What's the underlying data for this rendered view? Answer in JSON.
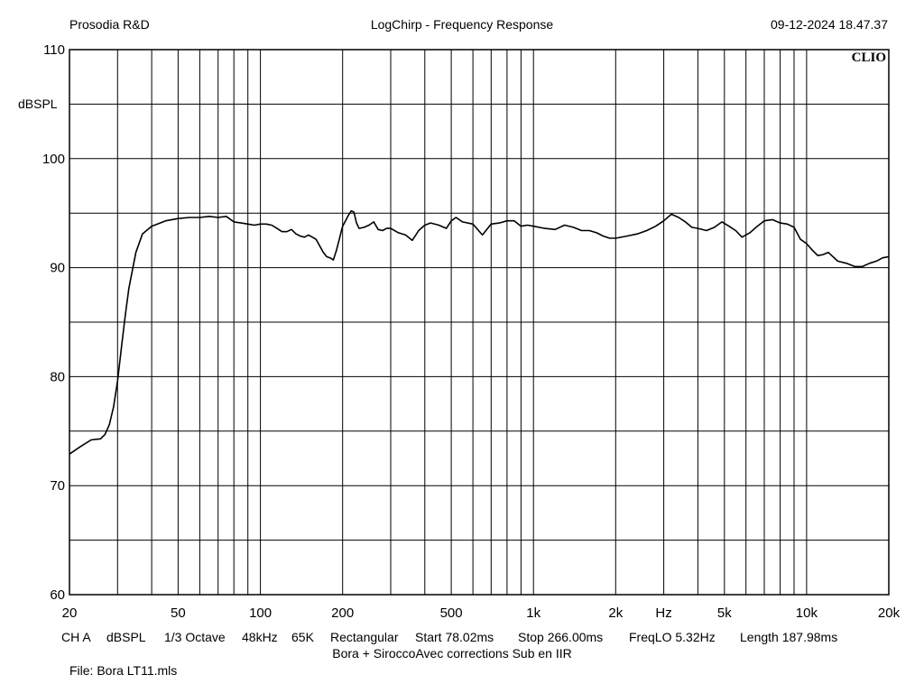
{
  "header": {
    "left": "Prosodia R&D",
    "center": "LogChirp - Frequency Response",
    "right": "09-12-2024 18.47.37"
  },
  "brand": "CLIO",
  "footer": {
    "settings": [
      "CH A",
      "dBSPL",
      "1/3 Octave",
      "48kHz",
      "65K",
      "Rectangular",
      "Start 78.02ms",
      "Stop 266.00ms",
      "FreqLO 5.32Hz",
      "Length 187.98ms"
    ],
    "note": "Bora + SiroccoAvec corrections Sub en IIR",
    "file": "File: Bora LT11.mls"
  },
  "chart_data": {
    "type": "line",
    "title": "LogChirp - Frequency Response",
    "xlabel": "Hz",
    "ylabel": "dBSPL",
    "xscale": "log",
    "xlim": [
      20,
      20000
    ],
    "ylim": [
      60,
      110
    ],
    "grid": true,
    "x_ticks": [
      {
        "value": 20,
        "label": "20"
      },
      {
        "value": 50,
        "label": "50"
      },
      {
        "value": 100,
        "label": "100"
      },
      {
        "value": 200,
        "label": "200"
      },
      {
        "value": 500,
        "label": "500"
      },
      {
        "value": 1000,
        "label": "1k"
      },
      {
        "value": 2000,
        "label": "2k"
      },
      {
        "value": 5000,
        "label": "5k"
      },
      {
        "value": 10000,
        "label": "10k"
      },
      {
        "value": 20000,
        "label": "20k"
      }
    ],
    "y_ticks": [
      {
        "value": 60,
        "label": "60"
      },
      {
        "value": 70,
        "label": "70"
      },
      {
        "value": 80,
        "label": "80"
      },
      {
        "value": 90,
        "label": "90"
      },
      {
        "value": 100,
        "label": "100"
      },
      {
        "value": 110,
        "label": "110"
      }
    ],
    "series": [
      {
        "color": "#000000",
        "x": [
          20,
          22,
          24,
          26,
          27,
          28,
          29,
          30,
          31,
          32,
          33,
          35,
          37,
          40,
          45,
          50,
          55,
          60,
          65,
          70,
          75,
          80,
          85,
          90,
          95,
          100,
          105,
          110,
          115,
          120,
          125,
          130,
          135,
          140,
          145,
          150,
          160,
          170,
          175,
          180,
          185,
          190,
          200,
          205,
          210,
          215,
          220,
          225,
          230,
          240,
          250,
          260,
          270,
          280,
          290,
          300,
          320,
          340,
          360,
          380,
          400,
          420,
          450,
          480,
          500,
          520,
          550,
          600,
          650,
          700,
          750,
          800,
          850,
          900,
          950,
          1000,
          1100,
          1200,
          1300,
          1400,
          1500,
          1600,
          1700,
          1800,
          1900,
          2000,
          2200,
          2400,
          2600,
          2800,
          3000,
          3200,
          3400,
          3600,
          3800,
          4000,
          4300,
          4600,
          4900,
          5200,
          5500,
          5800,
          6200,
          6600,
          7000,
          7500,
          8000,
          8500,
          9000,
          9500,
          10000,
          10500,
          11000,
          11500,
          12000,
          13000,
          14000,
          15000,
          16000,
          17000,
          18000,
          19000,
          20000
        ],
        "y": [
          72.9,
          73.6,
          74.2,
          74.3,
          74.7,
          75.6,
          77.2,
          79.6,
          82.7,
          85.6,
          88.1,
          91.4,
          93.1,
          93.8,
          94.3,
          94.5,
          94.6,
          94.6,
          94.7,
          94.6,
          94.7,
          94.2,
          94.1,
          94.0,
          93.9,
          94.0,
          94.0,
          93.9,
          93.6,
          93.3,
          93.3,
          93.5,
          93.1,
          92.9,
          92.8,
          93.0,
          92.6,
          91.4,
          91.0,
          90.9,
          90.7,
          91.6,
          93.8,
          94.3,
          94.8,
          95.2,
          95.1,
          94.1,
          93.6,
          93.7,
          93.9,
          94.2,
          93.5,
          93.4,
          93.6,
          93.6,
          93.2,
          93.0,
          92.5,
          93.4,
          93.9,
          94.1,
          93.9,
          93.6,
          94.3,
          94.6,
          94.2,
          94.0,
          93.0,
          94.0,
          94.1,
          94.3,
          94.3,
          93.8,
          93.9,
          93.8,
          93.6,
          93.5,
          93.9,
          93.7,
          93.4,
          93.4,
          93.2,
          92.9,
          92.7,
          92.7,
          92.9,
          93.1,
          93.4,
          93.8,
          94.3,
          94.9,
          94.6,
          94.2,
          93.7,
          93.6,
          93.4,
          93.7,
          94.2,
          93.8,
          93.4,
          92.8,
          93.2,
          93.8,
          94.3,
          94.4,
          94.1,
          94.0,
          93.7,
          92.6,
          92.2,
          91.6,
          91.1,
          91.2,
          91.4,
          90.6,
          90.4,
          90.1,
          90.1,
          90.4,
          90.6,
          90.9,
          91.0
        ]
      }
    ]
  }
}
